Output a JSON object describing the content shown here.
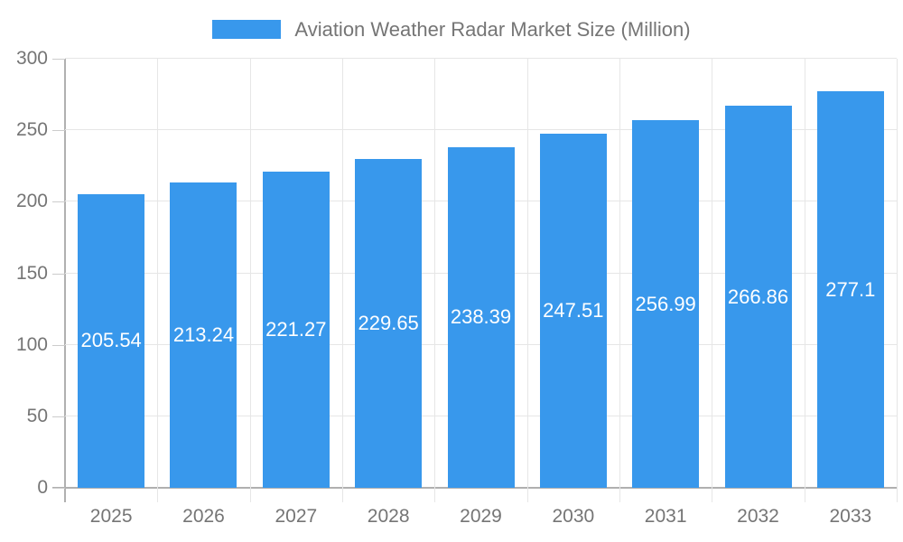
{
  "chart_data": {
    "type": "bar",
    "title": "Aviation Weather Radar Market Size (Million)",
    "legend": {
      "label": "Aviation Weather Radar Market Size (Million)",
      "position": "top"
    },
    "categories": [
      "2025",
      "2026",
      "2027",
      "2028",
      "2029",
      "2030",
      "2031",
      "2032",
      "2033"
    ],
    "series": [
      {
        "name": "Aviation Weather Radar Market Size (Million)",
        "values": [
          205.54,
          213.24,
          221.27,
          229.65,
          238.39,
          247.51,
          256.99,
          266.86,
          277.1
        ]
      }
    ],
    "value_labels": [
      "205.54",
      "213.24",
      "221.27",
      "229.65",
      "238.39",
      "247.51",
      "256.99",
      "266.86",
      "277.1"
    ],
    "xlabel": "",
    "ylabel": "",
    "ylim": [
      0,
      300
    ],
    "y_ticks": [
      0,
      50,
      100,
      150,
      200,
      250,
      300
    ],
    "grid": "on",
    "colors": {
      "bar": "#3898ec",
      "value_label": "#ffffff",
      "axis_text": "#757575",
      "gridline": "#e6e6e6",
      "axis_line": "#b0b0b0",
      "tick": "#cccccc"
    }
  }
}
